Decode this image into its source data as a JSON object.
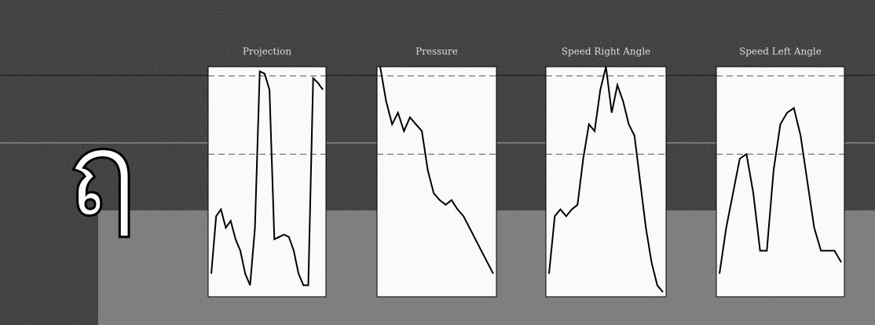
{
  "character": "ฤ",
  "chart_data": [
    {
      "type": "line",
      "title": "Projection",
      "color": "#000000",
      "ylim": [
        0,
        1
      ],
      "series": [
        {
          "values": [
            0.1,
            0.35,
            0.38,
            0.3,
            0.33,
            0.25,
            0.2,
            0.1,
            0.05,
            0.3,
            0.98,
            0.97,
            0.9,
            0.25,
            0.26,
            0.27,
            0.26,
            0.2,
            0.1,
            0.05,
            0.05,
            0.95,
            0.93,
            0.9
          ]
        }
      ]
    },
    {
      "type": "line",
      "title": "Pressure",
      "color": "#000000",
      "ylim": [
        0,
        1
      ],
      "series": [
        {
          "values": [
            1.0,
            0.85,
            0.75,
            0.8,
            0.72,
            0.78,
            0.75,
            0.72,
            0.55,
            0.45,
            0.42,
            0.4,
            0.42,
            0.38,
            0.35,
            0.3,
            0.25,
            0.2,
            0.15,
            0.1
          ]
        }
      ]
    },
    {
      "type": "line",
      "title": "Speed Right Angle",
      "color": "#000000",
      "ylim": [
        0,
        1
      ],
      "series": [
        {
          "values": [
            0.1,
            0.35,
            0.38,
            0.35,
            0.38,
            0.4,
            0.6,
            0.75,
            0.72,
            0.9,
            1.0,
            0.8,
            0.92,
            0.85,
            0.75,
            0.7,
            0.5,
            0.3,
            0.15,
            0.05,
            0.02
          ]
        }
      ]
    },
    {
      "type": "line",
      "title": "Speed Left Angle",
      "color": "#000000",
      "ylim": [
        0,
        1
      ],
      "series": [
        {
          "values": [
            0.1,
            0.3,
            0.45,
            0.6,
            0.62,
            0.45,
            0.2,
            0.2,
            0.55,
            0.75,
            0.8,
            0.82,
            0.7,
            0.5,
            0.3,
            0.2,
            0.2,
            0.2,
            0.15
          ]
        }
      ]
    }
  ]
}
